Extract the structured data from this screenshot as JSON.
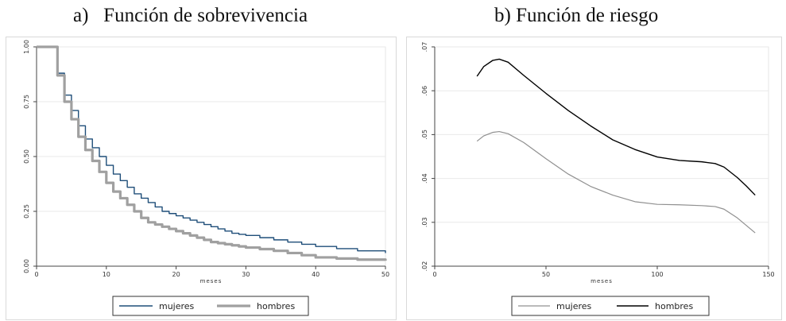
{
  "titles": {
    "a": "a)   Función de sobrevivencia",
    "b": "b) Función de riesgo"
  },
  "chart_data": [
    {
      "type": "line",
      "title": "a)   Función de sobrevivencia",
      "xlabel": "meses",
      "ylabel": "",
      "xlim": [
        0,
        50
      ],
      "ylim": [
        0,
        1
      ],
      "x_ticks": [
        0,
        10,
        20,
        30,
        40,
        50
      ],
      "x_tick_labels": [
        "0",
        "10",
        "20",
        "30",
        "40",
        "50"
      ],
      "y_ticks": [
        0,
        0.25,
        0.5,
        0.75,
        1
      ],
      "y_tick_labels": [
        "0.00",
        "0.25",
        "0.50",
        "0.75",
        "1.00"
      ],
      "grid": true,
      "legend": "bottom",
      "series": [
        {
          "name": "mujeres",
          "color": "#1f4e79",
          "step": true,
          "points": [
            [
              0,
              1.0
            ],
            [
              3,
              0.88
            ],
            [
              4,
              0.78
            ],
            [
              5,
              0.71
            ],
            [
              6,
              0.64
            ],
            [
              7,
              0.58
            ],
            [
              8,
              0.54
            ],
            [
              9,
              0.5
            ],
            [
              10,
              0.46
            ],
            [
              11,
              0.42
            ],
            [
              12,
              0.39
            ],
            [
              13,
              0.36
            ],
            [
              14,
              0.33
            ],
            [
              15,
              0.31
            ],
            [
              16,
              0.29
            ],
            [
              17,
              0.27
            ],
            [
              18,
              0.25
            ],
            [
              19,
              0.24
            ],
            [
              20,
              0.23
            ],
            [
              21,
              0.22
            ],
            [
              22,
              0.21
            ],
            [
              23,
              0.2
            ],
            [
              24,
              0.19
            ],
            [
              25,
              0.18
            ],
            [
              26,
              0.17
            ],
            [
              27,
              0.16
            ],
            [
              28,
              0.15
            ],
            [
              29,
              0.145
            ],
            [
              30,
              0.14
            ],
            [
              32,
              0.13
            ],
            [
              34,
              0.12
            ],
            [
              36,
              0.11
            ],
            [
              38,
              0.1
            ],
            [
              40,
              0.09
            ],
            [
              43,
              0.08
            ],
            [
              46,
              0.07
            ],
            [
              50,
              0.06
            ]
          ]
        },
        {
          "name": "hombres",
          "color": "#a0a0a0",
          "step": true,
          "points": [
            [
              0,
              1.0
            ],
            [
              3,
              0.87
            ],
            [
              4,
              0.75
            ],
            [
              5,
              0.67
            ],
            [
              6,
              0.59
            ],
            [
              7,
              0.53
            ],
            [
              8,
              0.48
            ],
            [
              9,
              0.43
            ],
            [
              10,
              0.38
            ],
            [
              11,
              0.34
            ],
            [
              12,
              0.31
            ],
            [
              13,
              0.28
            ],
            [
              14,
              0.25
            ],
            [
              15,
              0.22
            ],
            [
              16,
              0.2
            ],
            [
              17,
              0.19
            ],
            [
              18,
              0.18
            ],
            [
              19,
              0.17
            ],
            [
              20,
              0.16
            ],
            [
              21,
              0.15
            ],
            [
              22,
              0.14
            ],
            [
              23,
              0.13
            ],
            [
              24,
              0.12
            ],
            [
              25,
              0.11
            ],
            [
              26,
              0.105
            ],
            [
              27,
              0.1
            ],
            [
              28,
              0.095
            ],
            [
              29,
              0.09
            ],
            [
              30,
              0.085
            ],
            [
              32,
              0.078
            ],
            [
              34,
              0.07
            ],
            [
              36,
              0.06
            ],
            [
              38,
              0.05
            ],
            [
              40,
              0.04
            ],
            [
              43,
              0.035
            ],
            [
              46,
              0.03
            ],
            [
              50,
              0.025
            ]
          ]
        }
      ]
    },
    {
      "type": "line",
      "title": "b) Función de riesgo",
      "xlabel": "meses",
      "ylabel": "",
      "xlim": [
        0,
        150
      ],
      "ylim": [
        0.02,
        0.07
      ],
      "x_ticks": [
        0,
        50,
        100,
        150
      ],
      "x_tick_labels": [
        "0",
        "50",
        "100",
        "150"
      ],
      "y_ticks": [
        0.02,
        0.03,
        0.04,
        0.05,
        0.06,
        0.07
      ],
      "y_tick_labels": [
        ".02",
        ".03",
        ".04",
        ".05",
        ".06",
        ".07"
      ],
      "grid": true,
      "legend": "bottom",
      "series": [
        {
          "name": "mujeres",
          "color": "#909090",
          "points": [
            [
              19,
              0.0485
            ],
            [
              22,
              0.0497
            ],
            [
              26,
              0.0505
            ],
            [
              29,
              0.0507
            ],
            [
              33,
              0.0502
            ],
            [
              40,
              0.0482
            ],
            [
              50,
              0.0445
            ],
            [
              60,
              0.041
            ],
            [
              70,
              0.0382
            ],
            [
              80,
              0.0362
            ],
            [
              90,
              0.0347
            ],
            [
              100,
              0.0341
            ],
            [
              110,
              0.034
            ],
            [
              120,
              0.0338
            ],
            [
              126,
              0.0336
            ],
            [
              130,
              0.033
            ],
            [
              136,
              0.031
            ],
            [
              140,
              0.0293
            ],
            [
              144,
              0.0276
            ]
          ]
        },
        {
          "name": "hombres",
          "color": "#000000",
          "points": [
            [
              19,
              0.0633
            ],
            [
              22,
              0.0655
            ],
            [
              26,
              0.0669
            ],
            [
              29,
              0.0672
            ],
            [
              33,
              0.0665
            ],
            [
              40,
              0.0635
            ],
            [
              50,
              0.0594
            ],
            [
              60,
              0.0555
            ],
            [
              70,
              0.052
            ],
            [
              80,
              0.0488
            ],
            [
              90,
              0.0466
            ],
            [
              100,
              0.0449
            ],
            [
              110,
              0.0441
            ],
            [
              120,
              0.0438
            ],
            [
              126,
              0.0434
            ],
            [
              130,
              0.0426
            ],
            [
              136,
              0.0402
            ],
            [
              140,
              0.0383
            ],
            [
              144,
              0.0362
            ]
          ]
        }
      ]
    }
  ]
}
